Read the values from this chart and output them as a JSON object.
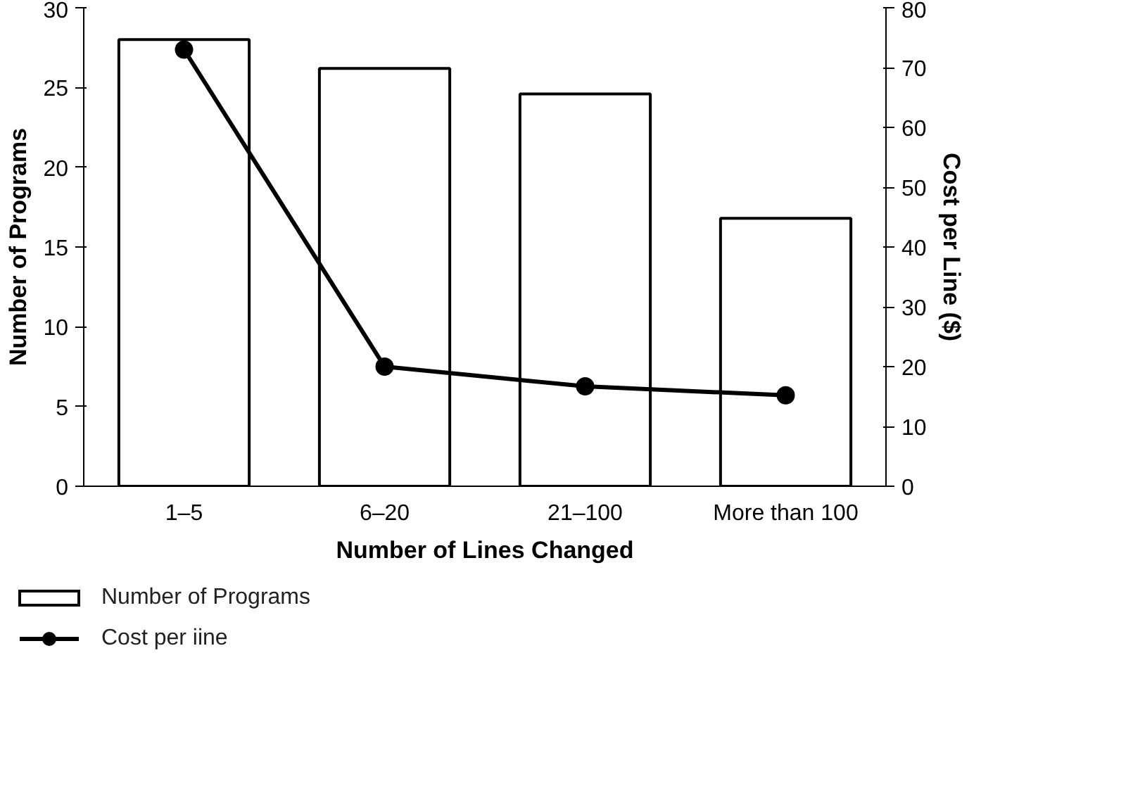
{
  "chart_data": {
    "type": "bar",
    "xlabel": "Number of Lines Changed",
    "ylabel": "Number of Programs",
    "y2label": "Cost per Line ($)",
    "categories": [
      "1–5",
      "6–20",
      "21–100",
      "More than 100"
    ],
    "series": [
      {
        "name": "Number of Programs",
        "color": "#ffffff",
        "values": [
          28,
          26.2,
          24.6,
          16.8
        ]
      },
      {
        "name": "Cost per iine",
        "type": "line",
        "axis": "y2",
        "color": "#000000",
        "values": [
          73,
          20,
          16.7,
          15.2
        ],
        "marker": "circle",
        "line_style": "solid"
      }
    ],
    "ylim": [
      0,
      30
    ],
    "yticks": [
      0,
      5,
      10,
      15,
      20,
      25,
      30
    ],
    "y2lim": [
      0,
      80
    ],
    "y2ticks": [
      0,
      10,
      20,
      30,
      40,
      50,
      60,
      70,
      80
    ],
    "grid": false,
    "legend": "bottom"
  }
}
